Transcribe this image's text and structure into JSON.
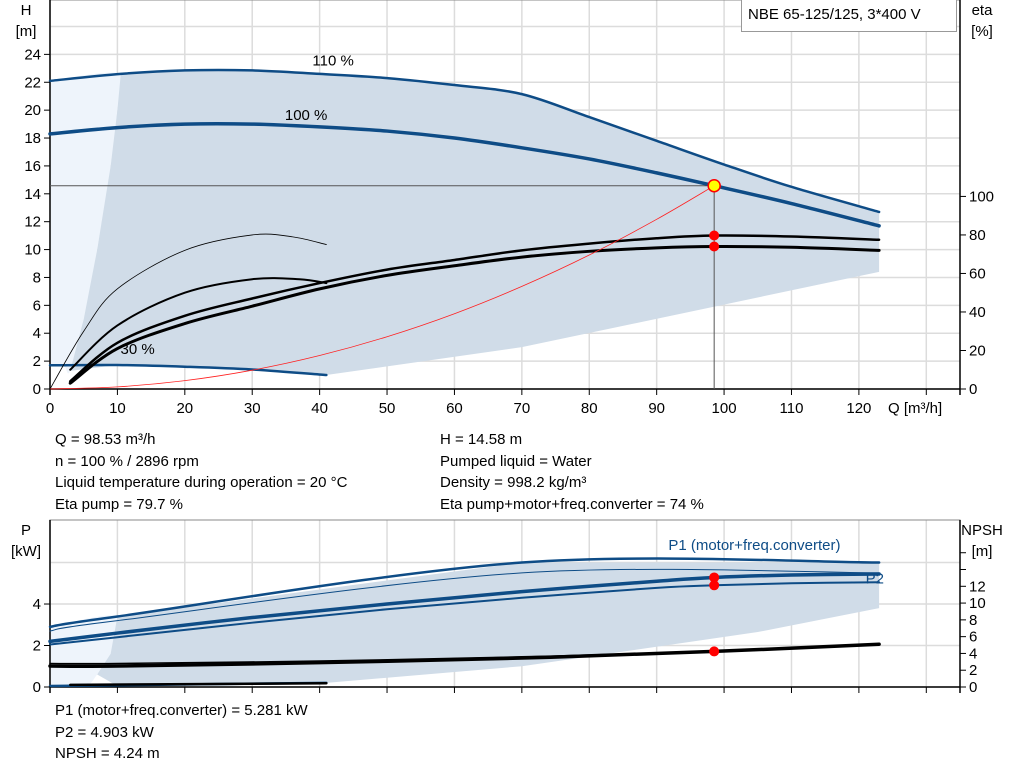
{
  "chart_data": [
    {
      "type": "line",
      "title": "NBE 65-125/125, 3*400 V",
      "xlabel": "Q [m³/h]",
      "ylabel": "H\n[m]",
      "y2label": "eta\n[%]",
      "xlim": [
        0,
        135
      ],
      "ylim": [
        0,
        27.9
      ],
      "y2lim": [
        0,
        202
      ],
      "xticks": [
        0,
        10,
        20,
        30,
        40,
        50,
        60,
        70,
        80,
        90,
        100,
        110,
        120
      ],
      "yticks": [
        0,
        2,
        4,
        6,
        8,
        10,
        12,
        14,
        16,
        18,
        20,
        22,
        24
      ],
      "y2ticks": [
        0,
        20,
        40,
        60,
        80,
        100
      ],
      "grid": true,
      "colors": {
        "curve": "#0e4c86",
        "region": "#d0dce8",
        "region_light": "#eef4fb",
        "system": "#ff2020",
        "eta": "#000000"
      },
      "curve_labels": [
        {
          "text": "110 %",
          "at": [
            42,
            23.2
          ]
        },
        {
          "text": "100 %",
          "at": [
            38,
            19.3
          ]
        },
        {
          "text": "30 %",
          "at": [
            13,
            2.5
          ]
        }
      ],
      "series": [
        {
          "name": "110 %",
          "axis": "H",
          "width": 2.5,
          "color": "#0e4c86",
          "points": [
            [
              0,
              22.1
            ],
            [
              10.5,
              22.6
            ],
            [
              20,
              22.85
            ],
            [
              30,
              22.85
            ],
            [
              40,
              22.6
            ],
            [
              50,
              22.3
            ],
            [
              60,
              21.8
            ],
            [
              70,
              21.15
            ],
            [
              80,
              19.5
            ],
            [
              90,
              17.8
            ],
            [
              100,
              16.1
            ],
            [
              110,
              14.5
            ],
            [
              123,
              12.7
            ]
          ]
        },
        {
          "name": "100 %",
          "axis": "H",
          "width": 3.5,
          "color": "#0e4c86",
          "points": [
            [
              0,
              18.3
            ],
            [
              10,
              18.75
            ],
            [
              20,
              19.0
            ],
            [
              30,
              19.0
            ],
            [
              40,
              18.8
            ],
            [
              50,
              18.5
            ],
            [
              60,
              18.0
            ],
            [
              70,
              17.3
            ],
            [
              80,
              16.5
            ],
            [
              90,
              15.5
            ],
            [
              98.53,
              14.58
            ],
            [
              110,
              13.3
            ],
            [
              123,
              11.7
            ]
          ]
        },
        {
          "name": "30 %",
          "axis": "H",
          "width": 2.5,
          "color": "#0e4c86",
          "points": [
            [
              0,
              1.7
            ],
            [
              10,
              1.72
            ],
            [
              20,
              1.6
            ],
            [
              30,
              1.4
            ],
            [
              41,
              1.0
            ]
          ]
        },
        {
          "name": "Eta pump",
          "axis": "eta",
          "width": 2.5,
          "color": "#000000",
          "points": [
            [
              3,
              4
            ],
            [
              10,
              24
            ],
            [
              20,
              38
            ],
            [
              30,
              47
            ],
            [
              40,
              55
            ],
            [
              50,
              62
            ],
            [
              60,
              67
            ],
            [
              70,
              72
            ],
            [
              80,
              75.5
            ],
            [
              90,
              78.3
            ],
            [
              98.53,
              79.7
            ],
            [
              110,
              79.2
            ],
            [
              123,
              77.5
            ]
          ]
        },
        {
          "name": "Eta pump+motor+freq.converter",
          "axis": "eta",
          "width": 3,
          "color": "#000000",
          "points": [
            [
              3,
              3
            ],
            [
              10,
              21
            ],
            [
              20,
              34
            ],
            [
              30,
              43
            ],
            [
              40,
              52
            ],
            [
              50,
              59
            ],
            [
              60,
              64
            ],
            [
              70,
              68.5
            ],
            [
              80,
              71.5
            ],
            [
              90,
              73.3
            ],
            [
              98.53,
              74
            ],
            [
              110,
              73.6
            ],
            [
              123,
              72
            ]
          ]
        },
        {
          "name": "",
          "axis": "eta",
          "width": 0.8,
          "color": "#000000",
          "points": [
            [
              0,
              0
            ],
            [
              5,
              30
            ],
            [
              10,
              52
            ],
            [
              20,
              72
            ],
            [
              30,
              80
            ],
            [
              36,
              79
            ],
            [
              41,
              75
            ]
          ]
        },
        {
          "name": "",
          "axis": "eta",
          "width": 2,
          "color": "#000000",
          "points": [
            [
              3,
              10
            ],
            [
              10,
              33
            ],
            [
              20,
              50
            ],
            [
              30,
              57
            ],
            [
              37,
              57
            ],
            [
              41,
              55
            ]
          ]
        },
        {
          "name": "System curve",
          "axis": "H",
          "width": 0.8,
          "color": "#ff2020",
          "points": [
            [
              0,
              0
            ],
            [
              10,
              0.15
            ],
            [
              20,
              0.6
            ],
            [
              30,
              1.35
            ],
            [
              40,
              2.4
            ],
            [
              50,
              3.75
            ],
            [
              60,
              5.4
            ],
            [
              70,
              7.36
            ],
            [
              80,
              9.61
            ],
            [
              90,
              12.17
            ],
            [
              98.53,
              14.58
            ]
          ]
        }
      ],
      "region": [
        [
          10.5,
          22.6
        ],
        [
          20,
          22.85
        ],
        [
          30,
          22.85
        ],
        [
          40,
          22.6
        ],
        [
          50,
          22.3
        ],
        [
          60,
          21.8
        ],
        [
          70,
          21.15
        ],
        [
          80,
          19.5
        ],
        [
          90,
          17.8
        ],
        [
          100,
          16.1
        ],
        [
          110,
          14.5
        ],
        [
          123,
          12.7
        ],
        [
          123,
          8.4
        ],
        [
          70,
          3.0
        ],
        [
          41,
          1.0
        ],
        [
          30,
          1.4
        ],
        [
          20,
          1.6
        ],
        [
          10,
          1.72
        ],
        [
          3,
          1.3
        ],
        [
          5,
          5
        ],
        [
          7,
          10
        ],
        [
          9,
          16
        ],
        [
          10,
          20
        ]
      ],
      "region_light": [
        [
          0,
          22.1
        ],
        [
          10.5,
          22.6
        ],
        [
          10,
          20
        ],
        [
          9,
          16
        ],
        [
          7,
          10
        ],
        [
          5,
          5
        ],
        [
          3,
          1.3
        ],
        [
          2,
          1.7
        ],
        [
          0,
          1.7
        ]
      ],
      "operating_point": {
        "Q": 98.53,
        "H": 14.58,
        "eta_pump": 79.7,
        "eta_total": 74
      }
    },
    {
      "type": "line",
      "ylabel": "P\n[kW]",
      "y2label": "NPSH\n[m]",
      "xlim": [
        0,
        135
      ],
      "ylim": [
        0,
        8.05
      ],
      "y2lim": [
        0,
        19.9
      ],
      "yticks": [
        0,
        2,
        4
      ],
      "y2ticks": [
        0,
        2,
        4,
        6,
        8,
        10,
        12
      ],
      "y2minor": [
        14,
        16
      ],
      "grid": true,
      "curve_labels": [
        {
          "text": "P1 (motor+freq.converter)",
          "at": [
            104.5,
            6.6
          ]
        },
        {
          "text": "P2",
          "at": [
            121,
            5.0
          ]
        }
      ],
      "series": [
        {
          "name": "P1 110 %",
          "axis": "P",
          "width": 2.5,
          "color": "#0e4c86",
          "points": [
            [
              0,
              2.9
            ],
            [
              10,
              3.4
            ],
            [
              70,
              6.0
            ],
            [
              123,
              6.0
            ]
          ]
        },
        {
          "name": "P2 110 %",
          "axis": "P",
          "width": 1,
          "color": "#0e4c86",
          "points": [
            [
              0,
              2.7
            ],
            [
              10,
              3.2
            ],
            [
              70,
              5.5
            ],
            [
              123,
              5.5
            ]
          ]
        },
        {
          "name": "P1 (motor+freq.converter)",
          "axis": "P",
          "width": 3.5,
          "color": "#0e4c86",
          "points": [
            [
              0,
              2.2
            ],
            [
              10,
              2.6
            ],
            [
              30,
              3.35
            ],
            [
              50,
              4.0
            ],
            [
              70,
              4.6
            ],
            [
              90,
              5.1
            ],
            [
              98.53,
              5.281
            ],
            [
              110,
              5.4
            ],
            [
              123,
              5.45
            ]
          ]
        },
        {
          "name": "P2",
          "axis": "P",
          "width": 2,
          "color": "#0e4c86",
          "points": [
            [
              0,
              2.05
            ],
            [
              10,
              2.4
            ],
            [
              30,
              3.1
            ],
            [
              50,
              3.75
            ],
            [
              70,
              4.3
            ],
            [
              90,
              4.78
            ],
            [
              98.53,
              4.903
            ],
            [
              110,
              5.0
            ],
            [
              123,
              5.05
            ]
          ]
        },
        {
          "name": "P 30 %",
          "axis": "P",
          "width": 2.5,
          "color": "#0e4c86",
          "points": [
            [
              0,
              0.05
            ],
            [
              41,
              0.2
            ]
          ]
        },
        {
          "name": "NPSH 110 %",
          "axis": "NPSH",
          "width": 1.5,
          "color": "#000000",
          "points": [
            [
              0,
              2.8
            ],
            [
              10,
              2.8
            ],
            [
              40,
              3.1
            ],
            [
              70,
              3.6
            ],
            [
              98.53,
              4.24
            ],
            [
              123,
              5.1
            ]
          ]
        },
        {
          "name": "NPSH",
          "axis": "NPSH",
          "width": 3.5,
          "color": "#000000",
          "points": [
            [
              0,
              2.5
            ],
            [
              10,
              2.5
            ],
            [
              40,
              2.9
            ],
            [
              70,
              3.45
            ],
            [
              98.53,
              4.24
            ],
            [
              123,
              5.1
            ]
          ]
        },
        {
          "name": "NPSH 30 %",
          "axis": "NPSH",
          "width": 2.5,
          "color": "#000000",
          "points": [
            [
              3,
              0.25
            ],
            [
              41,
              0.45
            ]
          ]
        }
      ],
      "region": [
        [
          10,
          3.4
        ],
        [
          70,
          6.0
        ],
        [
          123,
          6.0
        ],
        [
          123,
          3.8
        ],
        [
          105,
          2.65
        ],
        [
          70,
          1.0
        ],
        [
          41,
          0.2
        ],
        [
          10,
          0.05
        ],
        [
          7,
          0.6
        ],
        [
          9,
          1.6
        ]
      ],
      "region_light": [
        [
          0,
          2.9
        ],
        [
          10,
          3.4
        ],
        [
          9,
          1.6
        ],
        [
          7,
          0.6
        ],
        [
          5,
          0
        ],
        [
          0,
          0
        ]
      ],
      "operating_point": {
        "Q": 98.53,
        "P1": 5.281,
        "P2": 4.903,
        "NPSH": 4.24
      }
    }
  ],
  "legend_title": "NBE 65-125/125, 3*400 V",
  "info_top": {
    "left": [
      "Q = 98.53 m³/h",
      "n = 100 % / 2896 rpm",
      "Liquid temperature during operation = 20 °C",
      "Eta pump = 79.7 %"
    ],
    "right": [
      "H = 14.58 m",
      "Pumped liquid = Water",
      "Density = 998.2 kg/m³",
      "Eta pump+motor+freq.converter = 74 %"
    ]
  },
  "info_bottom": [
    "P1 (motor+freq.converter) = 5.281 kW",
    "P2 = 4.903 kW",
    "NPSH = 4.24 m"
  ]
}
